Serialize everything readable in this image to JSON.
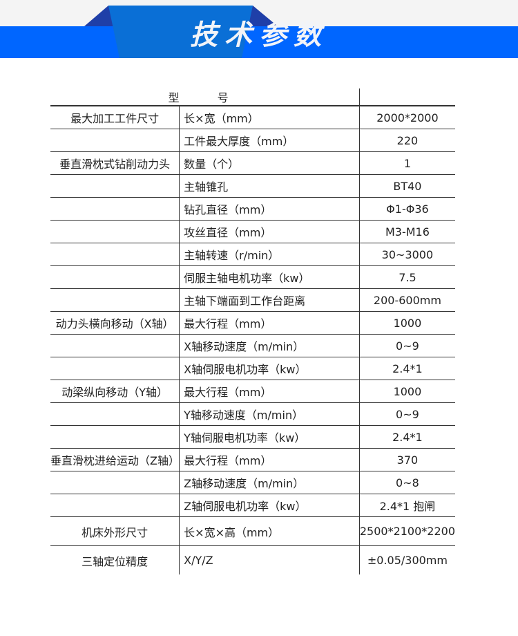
{
  "banner": {
    "title": "技术参数",
    "colors": {
      "band": "#0066ff",
      "center": "#0a6fd6",
      "wing": "#1f3fa8"
    }
  },
  "table": {
    "header": [
      "型",
      "号",
      ""
    ],
    "rows": [
      [
        "最大加工工件尺寸",
        "长×宽（mm）",
        "2000*2000"
      ],
      [
        "",
        "工件最大厚度（mm）",
        "220"
      ],
      [
        "垂直滑枕式钻削动力头",
        "数量（个）",
        "1"
      ],
      [
        "",
        "主轴锥孔",
        "BT40"
      ],
      [
        "",
        "钻孔直径（mm）",
        "Φ1-Φ36"
      ],
      [
        "",
        "攻丝直径（mm）",
        "M3-M16"
      ],
      [
        "",
        "主轴转速（r/min）",
        "30~3000"
      ],
      [
        "",
        "伺服主轴电机功率（kw）",
        "7.5"
      ],
      [
        "",
        "主轴下端面到工作台距离",
        "200-600mm"
      ],
      [
        "动力头横向移动（X轴）",
        "最大行程（mm）",
        "1000"
      ],
      [
        "",
        "X轴移动速度（m/min）",
        "0~9"
      ],
      [
        "",
        "X轴伺服电机功率（kw）",
        "2.4*1"
      ],
      [
        "动梁纵向移动（Y轴）",
        "最大行程（mm）",
        "1000"
      ],
      [
        "",
        "Y轴移动速度（m/min）",
        "0~9"
      ],
      [
        "",
        "Y轴伺服电机功率（kw）",
        "2.4*1"
      ],
      [
        "垂直滑枕进给运动（Z轴）",
        "最大行程（mm）",
        "370"
      ],
      [
        "",
        "Z轴移动速度（m/min）",
        "0~8"
      ],
      [
        "",
        "Z轴伺服电机功率（kw）",
        "2.4*1 抱闸"
      ],
      [
        "机床外形尺寸",
        "长×宽×高（mm）",
        "2500*2100*2200"
      ],
      [
        "三轴定位精度",
        "X/Y/Z",
        "±0.05/300mm"
      ]
    ]
  }
}
